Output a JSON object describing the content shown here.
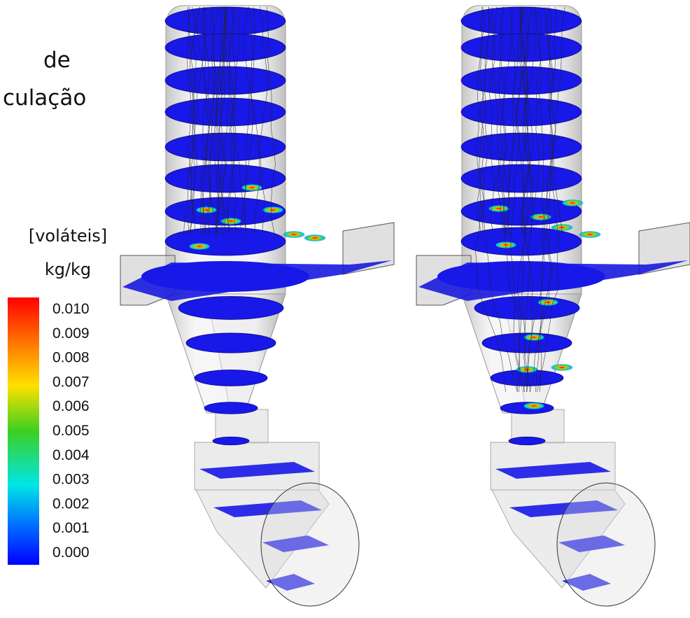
{
  "caption": {
    "line1": "de",
    "line2": "culação"
  },
  "legend": {
    "title": "[voláteis]",
    "unit": "kg/kg",
    "ticks": [
      "0.010",
      "0.009",
      "0.008",
      "0.007",
      "0.006",
      "0.005",
      "0.004",
      "0.003",
      "0.002",
      "0.001",
      "0.000"
    ]
  }
}
